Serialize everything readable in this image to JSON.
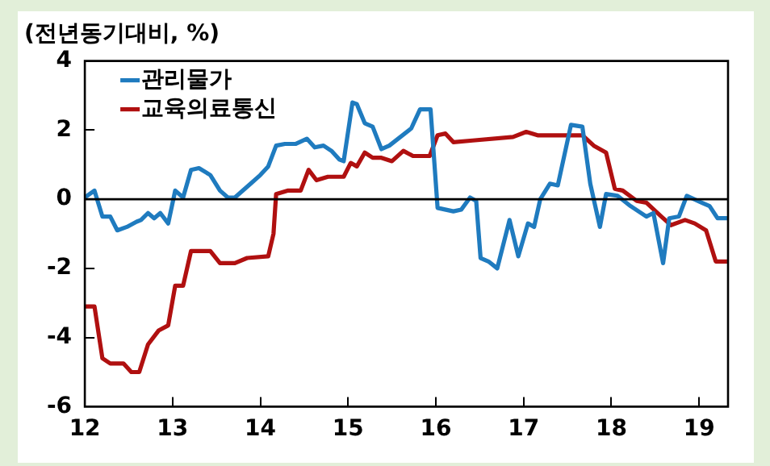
{
  "chart_data": {
    "type": "line",
    "title": "(전년동기대비, %)",
    "xlim": [
      12,
      19.33
    ],
    "xticks": [
      12,
      13,
      14,
      15,
      16,
      17,
      18,
      19
    ],
    "ylim": [
      -6,
      4
    ],
    "yticks": [
      -6,
      -4,
      -2,
      0,
      2,
      4
    ],
    "grid": false,
    "legend": "top left",
    "marker": "none",
    "line_style": "solid",
    "ref_lines": [
      {
        "axis": "y",
        "value": 0,
        "color": "#000000"
      }
    ],
    "series": [
      {
        "name": "관리물가",
        "color": "#1f7bbf",
        "x": [
          12.0,
          12.11,
          12.2,
          12.29,
          12.37,
          12.48,
          12.59,
          12.64,
          12.72,
          12.79,
          12.86,
          12.95,
          13.03,
          13.12,
          13.21,
          13.3,
          13.43,
          13.54,
          13.63,
          13.71,
          13.89,
          14.0,
          14.09,
          14.18,
          14.28,
          14.4,
          14.53,
          14.62,
          14.72,
          14.81,
          14.9,
          14.95,
          15.05,
          15.1,
          15.19,
          15.28,
          15.38,
          15.47,
          15.72,
          15.82,
          15.94,
          16.02,
          16.2,
          16.29,
          16.39,
          16.46,
          16.51,
          16.6,
          16.7,
          16.84,
          16.94,
          17.05,
          17.12,
          17.19,
          17.3,
          17.39,
          17.54,
          17.67,
          17.76,
          17.87,
          17.94,
          18.07,
          18.22,
          18.4,
          18.48,
          18.59,
          18.66,
          18.77,
          18.86,
          19.03,
          19.12,
          19.21,
          19.32
        ],
        "values": [
          0.05,
          0.25,
          -0.5,
          -0.5,
          -0.9,
          -0.8,
          -0.65,
          -0.6,
          -0.4,
          -0.55,
          -0.4,
          -0.7,
          0.25,
          0.05,
          0.85,
          0.9,
          0.7,
          0.25,
          0.05,
          0.05,
          0.45,
          0.7,
          0.95,
          1.55,
          1.6,
          1.6,
          1.75,
          1.5,
          1.55,
          1.4,
          1.15,
          1.1,
          2.8,
          2.75,
          2.2,
          2.1,
          1.45,
          1.55,
          2.05,
          2.6,
          2.6,
          -0.25,
          -0.35,
          -0.3,
          0.05,
          -0.05,
          -1.7,
          -1.8,
          -2.0,
          -0.6,
          -1.65,
          -0.7,
          -0.8,
          0.0,
          0.45,
          0.4,
          2.15,
          2.1,
          0.45,
          -0.8,
          0.15,
          0.1,
          -0.2,
          -0.5,
          -0.4,
          -1.85,
          -0.55,
          -0.5,
          0.1,
          -0.1,
          -0.2,
          -0.55,
          -0.55
        ]
      },
      {
        "name": "교육의료통신",
        "color": "#b01010",
        "x": [
          12.0,
          12.11,
          12.2,
          12.29,
          12.44,
          12.53,
          12.62,
          12.72,
          12.84,
          12.95,
          13.03,
          13.12,
          13.21,
          13.43,
          13.54,
          13.71,
          13.85,
          14.09,
          14.15,
          14.18,
          14.31,
          14.46,
          14.55,
          14.64,
          14.77,
          14.95,
          15.03,
          15.1,
          15.19,
          15.28,
          15.38,
          15.5,
          15.63,
          15.74,
          15.93,
          16.02,
          16.11,
          16.2,
          16.42,
          16.88,
          17.03,
          17.16,
          17.67,
          17.8,
          17.94,
          18.04,
          18.13,
          18.29,
          18.4,
          18.57,
          18.68,
          18.84,
          18.95,
          19.08,
          19.19,
          19.32
        ],
        "values": [
          -3.1,
          -3.1,
          -4.6,
          -4.75,
          -4.75,
          -5.0,
          -5.0,
          -4.2,
          -3.8,
          -3.65,
          -2.5,
          -2.5,
          -1.5,
          -1.5,
          -1.85,
          -1.85,
          -1.7,
          -1.65,
          -1.0,
          0.15,
          0.25,
          0.25,
          0.85,
          0.55,
          0.65,
          0.65,
          1.05,
          0.95,
          1.35,
          1.2,
          1.2,
          1.1,
          1.4,
          1.25,
          1.25,
          1.85,
          1.9,
          1.65,
          1.7,
          1.8,
          1.95,
          1.85,
          1.85,
          1.55,
          1.35,
          0.3,
          0.25,
          -0.05,
          -0.1,
          -0.5,
          -0.75,
          -0.6,
          -0.7,
          -0.9,
          -1.8,
          -1.8
        ]
      }
    ]
  }
}
